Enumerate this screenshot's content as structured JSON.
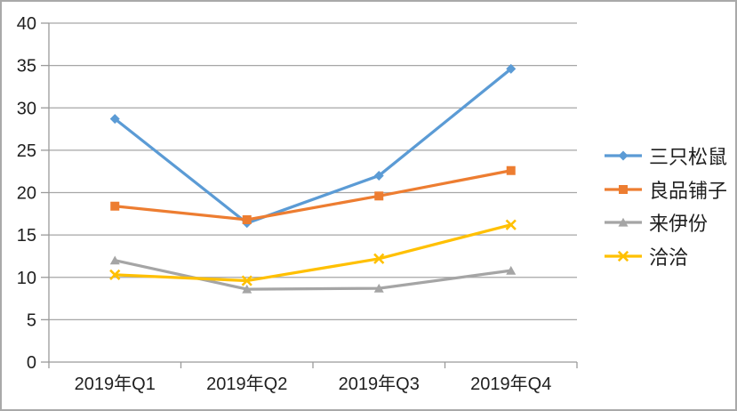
{
  "chart_data": {
    "type": "line",
    "categories": [
      "2019年Q1",
      "2019年Q2",
      "2019年Q3",
      "2019年Q4"
    ],
    "series": [
      {
        "name": "三只松鼠",
        "values": [
          28.7,
          16.4,
          22.0,
          34.6
        ],
        "color": "#5B9BD5",
        "marker": "diamond"
      },
      {
        "name": "良品铺子",
        "values": [
          18.4,
          16.8,
          19.6,
          22.6
        ],
        "color": "#ED7D31",
        "marker": "square"
      },
      {
        "name": "来伊份",
        "values": [
          12.0,
          8.6,
          8.7,
          10.8
        ],
        "color": "#A5A5A5",
        "marker": "triangle"
      },
      {
        "name": "洽洽",
        "values": [
          10.3,
          9.6,
          12.2,
          16.2
        ],
        "color": "#FFC000",
        "marker": "x"
      }
    ],
    "ylim": [
      0,
      40
    ],
    "ytick_step": 5,
    "y_tick_labels": [
      "0",
      "5",
      "10",
      "15",
      "20",
      "25",
      "30",
      "35",
      "40"
    ],
    "grid": true,
    "legend_position": "right"
  },
  "colors": {
    "gridline": "#a6a6a6",
    "axis": "#9a9a9a",
    "text": "#1f1f1f",
    "border": "#a9a9a9",
    "background": "#ffffff"
  }
}
